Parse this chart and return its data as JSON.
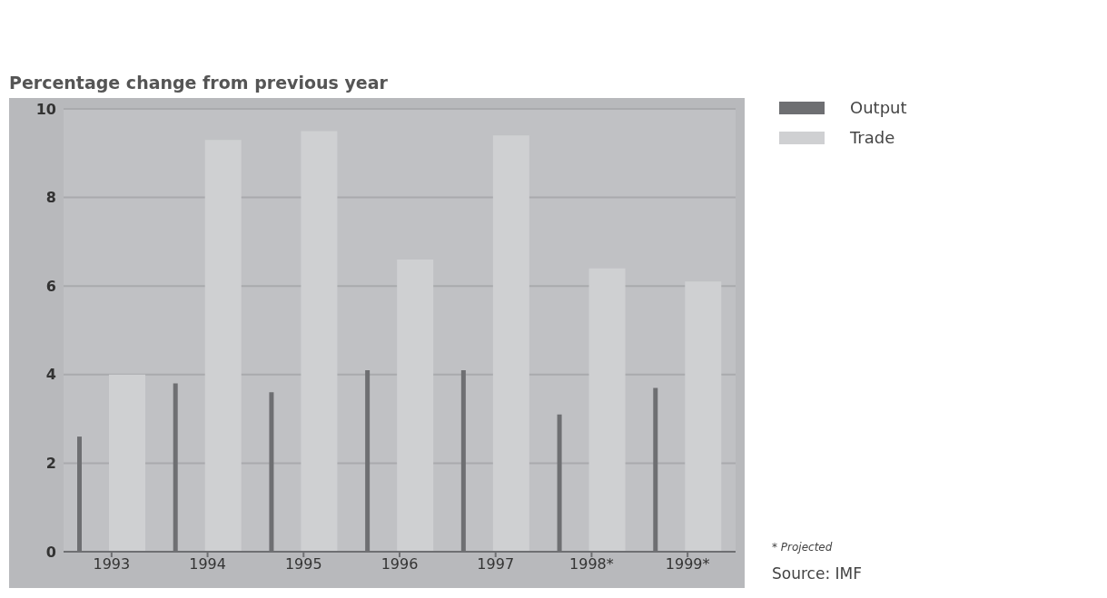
{
  "chart_data": {
    "type": "bar",
    "title": "Percentage change from previous year",
    "categories": [
      "1993",
      "1994",
      "1995",
      "1996",
      "1997",
      "1998*",
      "1999*"
    ],
    "series": [
      {
        "name": "Output",
        "color": "#6e6f72",
        "values": [
          2.6,
          3.8,
          3.6,
          4.1,
          4.1,
          3.1,
          3.7
        ]
      },
      {
        "name": "Trade",
        "color": "#cfd0d2",
        "values": [
          4.0,
          9.3,
          9.5,
          6.6,
          9.4,
          6.4,
          6.1
        ]
      }
    ],
    "ylim": [
      0,
      10
    ],
    "yticks": [
      0,
      2,
      4,
      6,
      8,
      10
    ],
    "grid": "y",
    "legend": "top right",
    "annotations": [
      "* Projected",
      "Source: IMF"
    ]
  }
}
